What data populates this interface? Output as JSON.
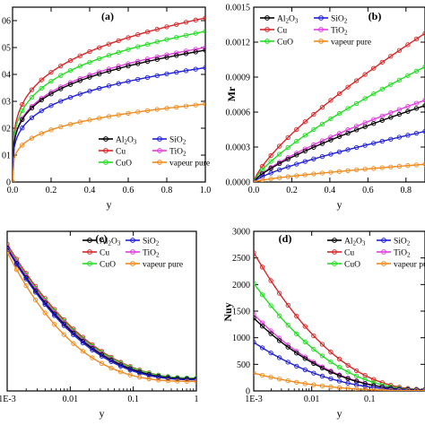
{
  "colors": {
    "Al2O3": "#000000",
    "Cu": "#d62728",
    "CuO": "#22dd22",
    "SiO2": "#1f1fd6",
    "TiO2": "#e23ce2",
    "vapeur pure": "#f08a1c"
  },
  "chart_data": [
    {
      "type": "line",
      "panel": "(a)",
      "xlabel": "y",
      "ylabel": "",
      "xlim": [
        0,
        1.0
      ],
      "ylim": [
        0,
        0.0065
      ],
      "x_ticks": [
        "0.0",
        "0.2",
        "0.4",
        "0.6",
        "0.8",
        "1.0"
      ],
      "y_ticks": [
        {
          "v": 0.0,
          "t": "0"
        },
        {
          "v": 0.001,
          "t": "01"
        },
        {
          "v": 0.002,
          "t": "02"
        },
        {
          "v": 0.003,
          "t": "03"
        },
        {
          "v": 0.004,
          "t": "04"
        },
        {
          "v": 0.005,
          "t": "05"
        },
        {
          "v": 0.006,
          "t": "06"
        }
      ],
      "x_scale": "linear",
      "legend": {
        "placement": "bottom-right",
        "entries": [
          {
            "key": "Al2O3",
            "base": "Al",
            "sub1": "2",
            "mid": "O",
            "sub2": "3"
          },
          {
            "key": "SiO2",
            "base": "SiO",
            "sub1": "2"
          },
          {
            "key": "Cu",
            "base": "Cu"
          },
          {
            "key": "TiO2",
            "base": "TiO",
            "sub1": "2"
          },
          {
            "key": "CuO",
            "base": "CuO"
          },
          {
            "key": "vapeur pure",
            "base": "vapeur pure"
          }
        ]
      },
      "series_shape": "power",
      "series": [
        {
          "key": "Cu",
          "base": 0.0,
          "amp": 0.0061,
          "exp": 0.25
        },
        {
          "key": "CuO",
          "base": 0.0,
          "amp": 0.0056,
          "exp": 0.25
        },
        {
          "key": "TiO2",
          "base": 0.0,
          "amp": 0.005,
          "exp": 0.25
        },
        {
          "key": "Al2O3",
          "base": 0.0,
          "amp": 0.0049,
          "exp": 0.25
        },
        {
          "key": "SiO2",
          "base": 0.0,
          "amp": 0.00425,
          "exp": 0.25
        },
        {
          "key": "vapeur pure",
          "base": 0.0,
          "amp": 0.0029,
          "exp": 0.25
        }
      ]
    },
    {
      "type": "line",
      "panel": "(b)",
      "xlabel": "y",
      "ylabel": "Mr",
      "xlim": [
        0,
        0.9
      ],
      "ylim": [
        0,
        0.0015
      ],
      "x_ticks": [
        "0.0",
        "0.2",
        "0.4",
        "0.6",
        "0.8"
      ],
      "y_ticks": [
        {
          "v": 0.0,
          "t": "0.0000"
        },
        {
          "v": 0.0003,
          "t": "0.0003"
        },
        {
          "v": 0.0006,
          "t": "0.0006"
        },
        {
          "v": 0.0009,
          "t": "0.0009"
        },
        {
          "v": 0.0012,
          "t": "0.0012"
        },
        {
          "v": 0.0015,
          "t": "0.0015"
        }
      ],
      "x_scale": "linear",
      "legend": {
        "placement": "top-left",
        "entries": [
          {
            "key": "Al2O3",
            "base": "Al",
            "sub1": "2",
            "mid": "O",
            "sub2": "3"
          },
          {
            "key": "SiO2",
            "base": "SiO",
            "sub1": "2"
          },
          {
            "key": "Cu",
            "base": "Cu"
          },
          {
            "key": "TiO2",
            "base": "TiO",
            "sub1": "2"
          },
          {
            "key": "CuO",
            "base": "CuO"
          },
          {
            "key": "vapeur pure",
            "base": "vapeur pure"
          }
        ]
      },
      "series_shape": "power",
      "series": [
        {
          "key": "Cu",
          "base": 0.0,
          "amp": 0.00138,
          "exp": 0.75
        },
        {
          "key": "CuO",
          "base": 0.0,
          "amp": 0.00107,
          "exp": 0.75
        },
        {
          "key": "TiO2",
          "base": 0.0,
          "amp": 0.00076,
          "exp": 0.75
        },
        {
          "key": "Al2O3",
          "base": 0.0,
          "amp": 0.00071,
          "exp": 0.75
        },
        {
          "key": "SiO2",
          "base": 0.0,
          "amp": 0.00047,
          "exp": 0.75
        },
        {
          "key": "vapeur pure",
          "base": 0.0,
          "amp": 0.000165,
          "exp": 0.75
        }
      ]
    },
    {
      "type": "line",
      "panel": "(c)",
      "xlabel": "y",
      "ylabel": "",
      "xlim": [
        0.001,
        1
      ],
      "ylim": [
        0,
        1
      ],
      "x_ticks": [
        "1E-3",
        "0.01",
        "0.1",
        "1"
      ],
      "y_ticks": [],
      "x_scale": "log",
      "legend": {
        "placement": "top-center",
        "entries": [
          {
            "key": "Al2O3",
            "base": "Al",
            "sub1": "2",
            "mid": "O",
            "sub2": "3"
          },
          {
            "key": "SiO2",
            "base": "SiO",
            "sub1": "2"
          },
          {
            "key": "Cu",
            "base": "Cu"
          },
          {
            "key": "TiO2",
            "base": "TiO",
            "sub1": "2"
          },
          {
            "key": "CuO",
            "base": "CuO"
          },
          {
            "key": "vapeur pure",
            "base": "vapeur pure"
          }
        ]
      },
      "series_shape": "decay",
      "series": [
        {
          "key": "Cu",
          "base": 0.08,
          "amp": 0.84,
          "exp": 1.55
        },
        {
          "key": "CuO",
          "base": 0.08,
          "amp": 0.83,
          "exp": 1.58
        },
        {
          "key": "TiO2",
          "base": 0.075,
          "amp": 0.83,
          "exp": 1.6
        },
        {
          "key": "Al2O3",
          "base": 0.075,
          "amp": 0.82,
          "exp": 1.62
        },
        {
          "key": "SiO2",
          "base": 0.07,
          "amp": 0.82,
          "exp": 1.65
        },
        {
          "key": "vapeur pure",
          "base": 0.06,
          "amp": 0.81,
          "exp": 1.9
        }
      ]
    },
    {
      "type": "line",
      "panel": "(d)",
      "xlabel": "y",
      "ylabel": "Nuy",
      "xlim": [
        0.001,
        0.9
      ],
      "ylim": [
        0,
        3000
      ],
      "x_ticks": [
        "1E-3",
        "0.01",
        "0.1"
      ],
      "y_ticks": [
        {
          "v": 0,
          "t": "0"
        },
        {
          "v": 500,
          "t": "500"
        },
        {
          "v": 1000,
          "t": "1000"
        },
        {
          "v": 1500,
          "t": "1500"
        },
        {
          "v": 2000,
          "t": "2000"
        },
        {
          "v": 2500,
          "t": "2500"
        },
        {
          "v": 3000,
          "t": "3000"
        }
      ],
      "x_scale": "log",
      "legend": {
        "placement": "top-right",
        "entries": [
          {
            "key": "Al2O3",
            "base": "Al",
            "sub1": "2",
            "mid": "O",
            "sub2": "3"
          },
          {
            "key": "SiO2",
            "base": "SiO",
            "sub1": "2"
          },
          {
            "key": "Cu",
            "base": "Cu"
          },
          {
            "key": "TiO2",
            "base": "TiO",
            "sub1": "2"
          },
          {
            "key": "CuO",
            "base": "CuO"
          },
          {
            "key": "vapeur pure",
            "base": "vapeur pure"
          }
        ]
      },
      "series_shape": "decay",
      "series": [
        {
          "key": "Cu",
          "base": 30,
          "amp": 2570,
          "exp": 1.45
        },
        {
          "key": "CuO",
          "base": 25,
          "amp": 2000,
          "exp": 1.5
        },
        {
          "key": "TiO2",
          "base": 20,
          "amp": 1420,
          "exp": 1.55
        },
        {
          "key": "Al2O3",
          "base": 20,
          "amp": 1350,
          "exp": 1.55
        },
        {
          "key": "SiO2",
          "base": 15,
          "amp": 900,
          "exp": 1.6
        },
        {
          "key": "vapeur pure",
          "base": 5,
          "amp": 330,
          "exp": 1.7
        }
      ]
    }
  ]
}
